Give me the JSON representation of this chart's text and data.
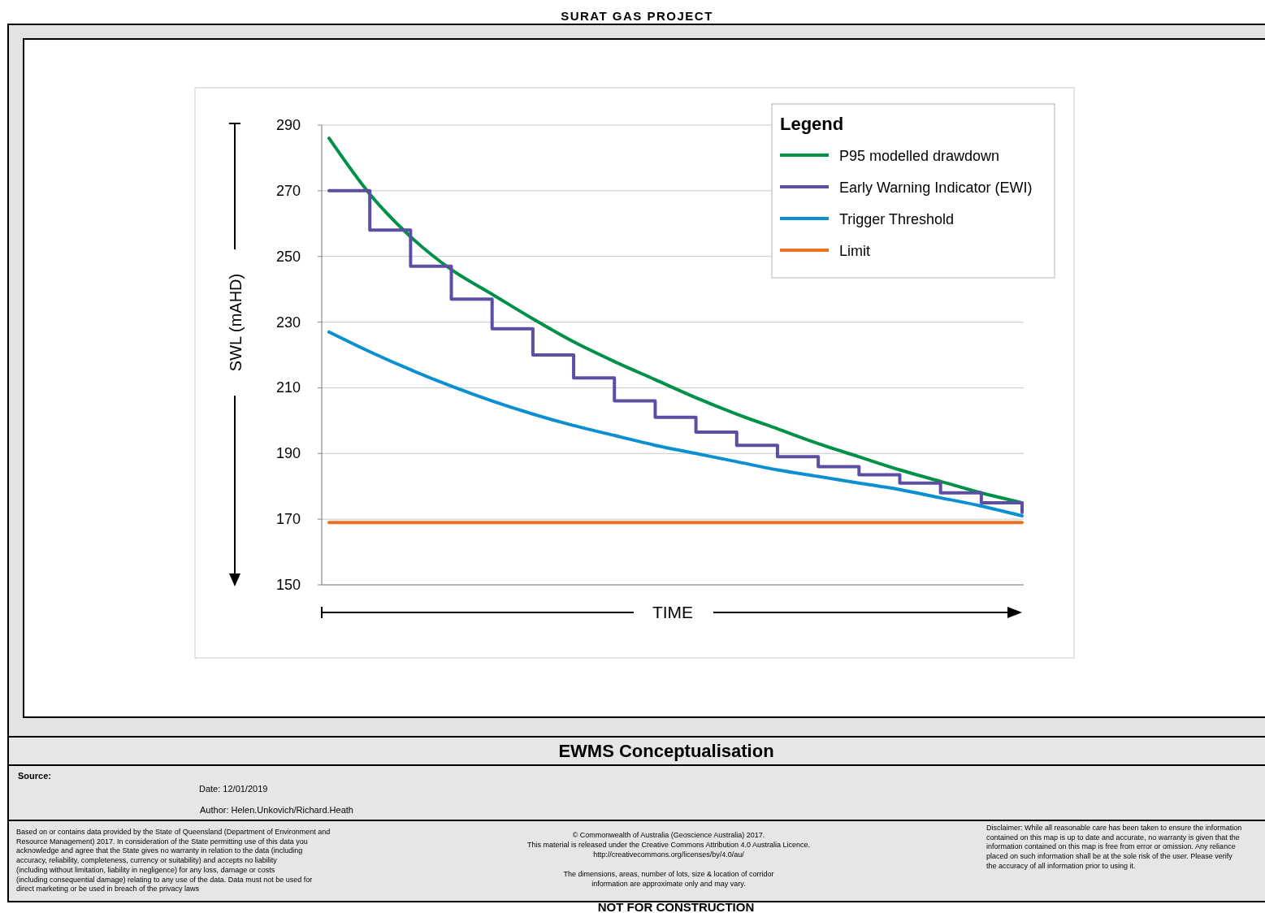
{
  "chart_data": {
    "type": "line",
    "title": "SURAT GAS PROJECT",
    "subtitle": "EWMS Conceptualisation",
    "xlabel": "TIME",
    "ylabel": "SWL (mAHD)",
    "legend_title": "Legend",
    "categories": [
      null,
      null,
      null,
      null,
      null,
      null,
      null,
      null,
      null,
      null,
      null,
      null,
      null,
      null,
      null,
      null,
      null,
      null
    ],
    "series": [
      {
        "name": "P95 modelled drawdown",
        "color": "#009148",
        "values": [
          286,
          269,
          256,
          246,
          238.5,
          231,
          224,
          218,
          212.5,
          207,
          202,
          197.5,
          193,
          189,
          185,
          181.5,
          178,
          175
        ]
      },
      {
        "name": "Early Warning Indicator (EWI)",
        "color": "#5b4fa4",
        "type": "step",
        "values": [
          270,
          258,
          247,
          237,
          228,
          220,
          213,
          206,
          201,
          196.5,
          192.5,
          189,
          186,
          183.5,
          181,
          178,
          175,
          172
        ]
      },
      {
        "name": "Trigger Threshold",
        "color": "#0a8fd0",
        "values": [
          227,
          221,
          215.5,
          210.5,
          206,
          202,
          198.5,
          195.5,
          192.5,
          190,
          187.5,
          185,
          183,
          181,
          179,
          176.5,
          174,
          171
        ]
      },
      {
        "name": "Limit",
        "color": "#f07022",
        "values": [
          169,
          169,
          169,
          169,
          169,
          169,
          169,
          169,
          169,
          169,
          169,
          169,
          169,
          169,
          169,
          169,
          169,
          169
        ]
      }
    ],
    "ylim": [
      150,
      290
    ],
    "yticks": [
      150,
      170,
      190,
      210,
      230,
      250,
      270,
      290
    ],
    "grid": "y",
    "legend": "top right",
    "marker": "none",
    "line_style": "solid",
    "annotations": [
      "Source:",
      "Date: 12/01/2019",
      "Author: Helen.Unkovich/Richard.Heath",
      "Based on or contains data provided by the State of Queensland (Department of Environment and Resource Management) 2017.  In consideration of the State permitting use of this data you acknowledge and agree that the State gives no warranty in relation to the data (including accuracy, reliability, completeness, currency or suitability) and accepts no liability (including without limitation, liability in negligence) for any loss, damage or costs (including consequential damage) relating to any use of the data.  Data must not be used for direct marketing or be used in breach of the privacy laws",
      "© Commonwealth of Australia (Geoscience Australia) 2017.",
      "This material is released under the Creative Commons Attribution 4.0 Australia Licence.",
      "http://creativecommons.org/licenses/by/4.0/au/",
      "The dimensions, areas, number of lots, size & location of corridor information are approximate only and may vary.",
      "Disclaimer: While all reasonable care has been taken to ensure the information contained on this map is up to date and accurate, no warranty is given that the information contained on this map is free from error or omission.  Any reliance placed on such information shall be at the sole risk of the user.  Please verify the accuracy of all information prior to using it.",
      "NOT FOR CONSTRUCTION"
    ]
  }
}
